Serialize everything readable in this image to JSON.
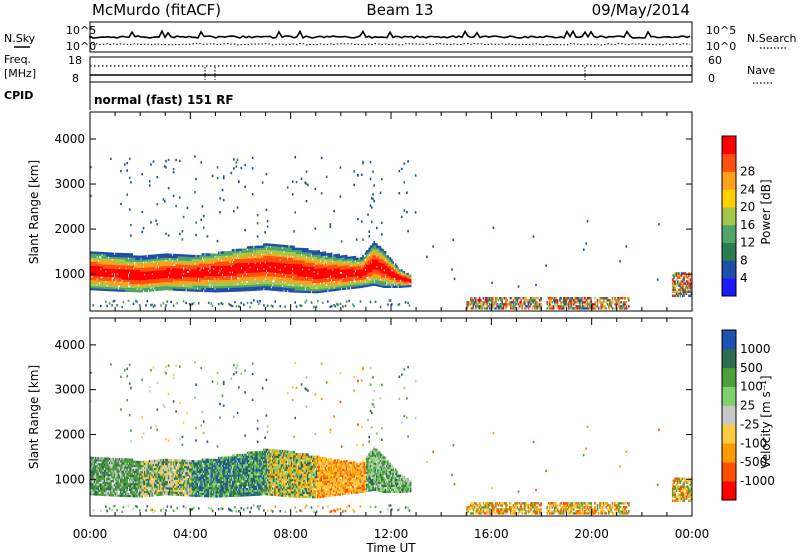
{
  "header": {
    "station": "McMurdo (fitACF)",
    "beam": "Beam 13",
    "date": "09/May/2014"
  },
  "top_panels": {
    "nsky_label": "N.Sky",
    "nsearch_label": "N.Search",
    "count_ticks": [
      "10^5",
      "10^0"
    ],
    "freq_label": "Freq.",
    "freq_unit": "[MHz]",
    "freq_ticks": [
      "18",
      "8"
    ],
    "nave_label": "Nave",
    "nave_ticks": [
      "60",
      "0"
    ],
    "cpid_label": "CPID",
    "cpid_text": "normal (fast) 151 RF"
  },
  "colors": {
    "power": [
      "#1a1aff",
      "#1f4fa8",
      "#2e7a4f",
      "#4fa56a",
      "#a5c84a",
      "#ffd000",
      "#ff9f1a",
      "#ff5010",
      "#ff0000"
    ],
    "velocity": [
      "#ff0000",
      "#ff5000",
      "#ff9a00",
      "#ffcc40",
      "#c8c8c8",
      "#7fd26a",
      "#4da03a",
      "#2e6b50",
      "#1f52b0"
    ]
  },
  "chart_data": [
    {
      "type": "heatmap",
      "name": "power",
      "xlabel": "Time UT",
      "ylabel": "Slant Range [km]",
      "xlim": [
        0,
        24
      ],
      "ylim": [
        180,
        4600
      ],
      "x_ticks": [
        "00:00",
        "04:00",
        "08:00",
        "12:00",
        "16:00",
        "20:00",
        "00:00"
      ],
      "y_ticks": [
        1000,
        2000,
        3000,
        4000
      ],
      "colorbar_label": "Power [dB]",
      "colorbar_ticks": [
        4,
        8,
        12,
        16,
        20,
        24,
        28
      ],
      "colorbar_range": [
        0,
        30
      ],
      "main_band": [
        {
          "t": 0.0,
          "low": 650,
          "high": 1500,
          "core": 1050
        },
        {
          "t": 1.0,
          "low": 620,
          "high": 1450,
          "core": 1000
        },
        {
          "t": 2.0,
          "low": 600,
          "high": 1400,
          "core": 950
        },
        {
          "t": 3.0,
          "low": 650,
          "high": 1450,
          "core": 1000
        },
        {
          "t": 4.0,
          "low": 620,
          "high": 1400,
          "core": 1000
        },
        {
          "t": 5.0,
          "low": 600,
          "high": 1450,
          "core": 1050
        },
        {
          "t": 6.0,
          "low": 620,
          "high": 1550,
          "core": 1100
        },
        {
          "t": 7.0,
          "low": 650,
          "high": 1650,
          "core": 1150
        },
        {
          "t": 8.0,
          "low": 600,
          "high": 1600,
          "core": 1100
        },
        {
          "t": 9.0,
          "low": 580,
          "high": 1500,
          "core": 1000
        },
        {
          "t": 10.0,
          "low": 650,
          "high": 1400,
          "core": 1000
        },
        {
          "t": 10.8,
          "low": 700,
          "high": 1350,
          "core": 1000
        },
        {
          "t": 11.3,
          "low": 750,
          "high": 1700,
          "core": 1200
        },
        {
          "t": 11.7,
          "low": 700,
          "high": 1500,
          "core": 1100
        },
        {
          "t": 12.3,
          "low": 700,
          "high": 1100,
          "core": 900
        },
        {
          "t": 12.8,
          "low": 720,
          "high": 950,
          "core": 830
        }
      ],
      "low_bands": [
        {
          "t0": 15.0,
          "t1": 18.0,
          "low": 220,
          "high": 450
        },
        {
          "t0": 18.2,
          "t1": 21.5,
          "low": 220,
          "high": 480
        },
        {
          "t0": 23.2,
          "t1": 24.0,
          "low": 500,
          "high": 1000
        }
      ]
    },
    {
      "type": "heatmap",
      "name": "velocity",
      "xlabel": "Time UT",
      "ylabel": "Slant Range [km]",
      "xlim": [
        0,
        24
      ],
      "ylim": [
        180,
        4600
      ],
      "x_ticks": [
        "00:00",
        "04:00",
        "08:00",
        "12:00",
        "16:00",
        "20:00",
        "00:00"
      ],
      "y_ticks": [
        1000,
        2000,
        3000,
        4000
      ],
      "colorbar_label": "Velocity [m s⁻¹]",
      "colorbar_ticks": [
        "1000",
        "500",
        "100",
        "25",
        "-25",
        "-100",
        "-500",
        "-1000"
      ]
    }
  ]
}
